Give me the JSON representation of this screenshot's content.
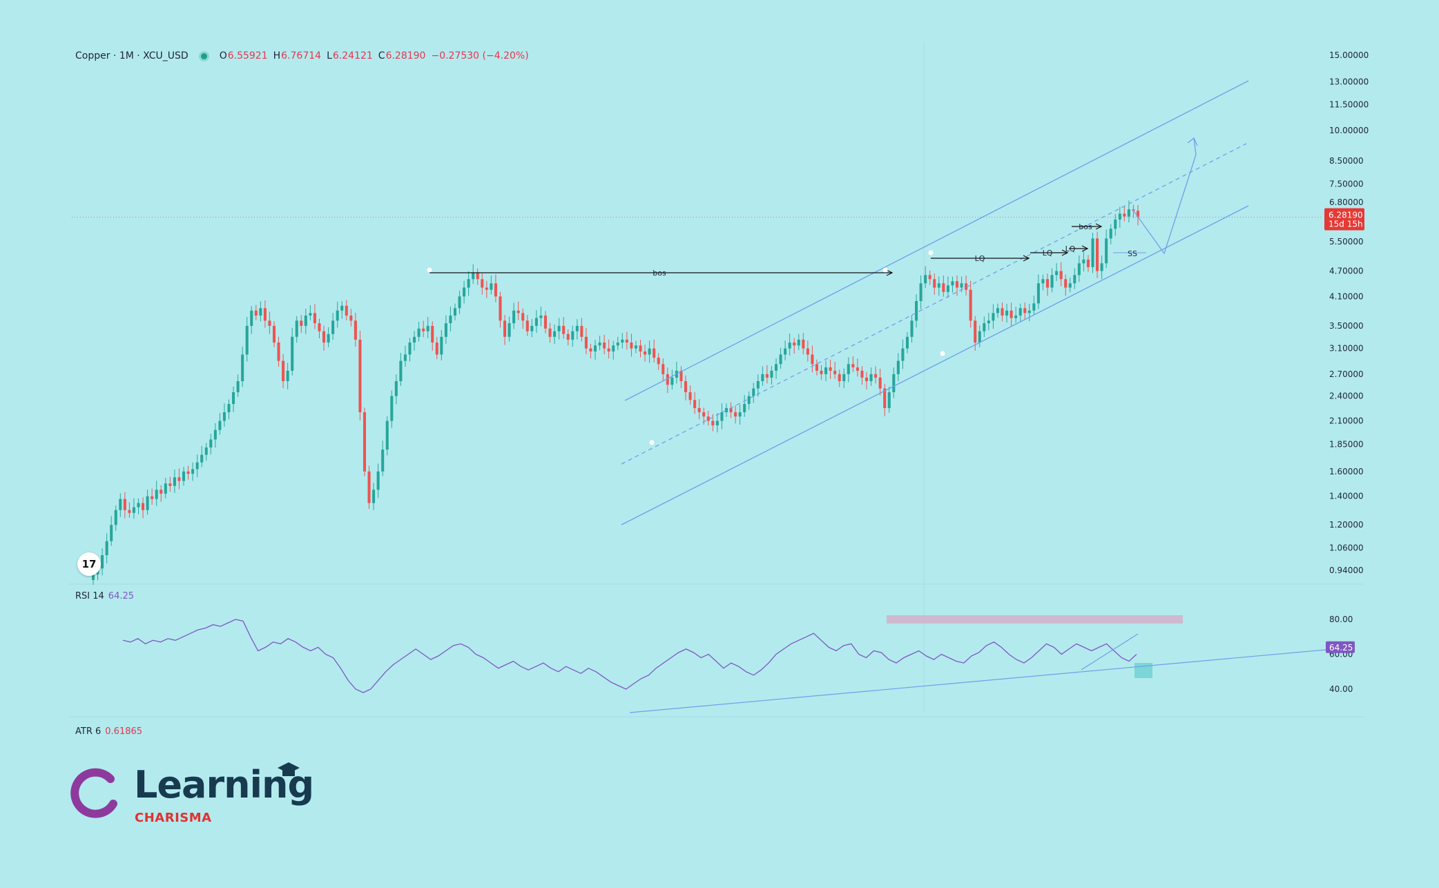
{
  "header": {
    "symbol": "Copper · 1M · XCU_USD",
    "open_label": "O",
    "open": "6.55921",
    "high_label": "H",
    "high": "6.76714",
    "low_label": "L",
    "low": "6.24121",
    "close_label": "C",
    "close": "6.28190",
    "change": "−0.27530 (−4.20%)"
  },
  "price_tag": {
    "price": "6.28190",
    "countdown": "15d 15h"
  },
  "rsi": {
    "label": "RSI 14",
    "value": "64.25"
  },
  "atr": {
    "label": "ATR 6",
    "value": "0.61865"
  },
  "brand": {
    "word": "Learning",
    "sub": "CHARISMA"
  },
  "tv_logo_glyph": "17",
  "colors": {
    "background": "#b3eaee",
    "up_candle": "#26a69a",
    "down_candle": "#ef5350",
    "channel": "#6f9fe8",
    "rsi_line": "#7e57c2",
    "price_tag": "#e53935",
    "brand_ring": "#8e3a9d",
    "brand_text": "#173a4f",
    "brand_sub": "#e03131"
  },
  "chart_data": [
    {
      "type": "candlestick",
      "title": "Copper · 1M · XCU_USD",
      "price_scale": "log",
      "ylim": [
        0.9,
        15.0
      ],
      "y_ticks": [
        "15.00000",
        "13.00000",
        "11.50000",
        "10.00000",
        "8.50000",
        "7.50000",
        "6.80000",
        "5.50000",
        "4.70000",
        "4.10000",
        "3.50000",
        "3.10000",
        "2.70000",
        "2.40000",
        "2.10000",
        "1.85000",
        "1.60000",
        "1.40000",
        "1.20000",
        "1.06000",
        "0.94000"
      ],
      "y_tick_values": [
        15.0,
        13.0,
        11.5,
        10.0,
        8.5,
        7.5,
        6.8,
        5.5,
        4.7,
        4.1,
        3.5,
        3.1,
        2.7,
        2.4,
        2.1,
        1.85,
        1.6,
        1.4,
        1.2,
        1.06,
        0.94
      ],
      "close_series": [
        0.92,
        0.95,
        1.02,
        1.1,
        1.2,
        1.3,
        1.38,
        1.3,
        1.28,
        1.32,
        1.35,
        1.3,
        1.4,
        1.38,
        1.45,
        1.42,
        1.5,
        1.48,
        1.55,
        1.52,
        1.6,
        1.58,
        1.62,
        1.68,
        1.75,
        1.82,
        1.9,
        2.0,
        2.1,
        2.2,
        2.3,
        2.45,
        2.6,
        3.0,
        3.5,
        3.8,
        3.7,
        3.85,
        3.6,
        3.5,
        3.2,
        2.9,
        2.6,
        2.75,
        3.3,
        3.6,
        3.5,
        3.7,
        3.75,
        3.55,
        3.4,
        3.2,
        3.35,
        3.6,
        3.8,
        3.9,
        3.7,
        3.6,
        3.25,
        2.2,
        1.6,
        1.35,
        1.45,
        1.6,
        1.8,
        2.1,
        2.4,
        2.6,
        2.9,
        3.0,
        3.2,
        3.3,
        3.45,
        3.4,
        3.5,
        3.2,
        3.0,
        3.3,
        3.55,
        3.7,
        3.85,
        4.1,
        4.3,
        4.5,
        4.65,
        4.5,
        4.3,
        4.25,
        4.4,
        4.1,
        3.6,
        3.3,
        3.55,
        3.8,
        3.75,
        3.6,
        3.4,
        3.5,
        3.65,
        3.7,
        3.45,
        3.3,
        3.4,
        3.5,
        3.35,
        3.25,
        3.4,
        3.5,
        3.3,
        3.1,
        3.05,
        3.15,
        3.2,
        3.1,
        3.05,
        3.15,
        3.2,
        3.25,
        3.2,
        3.1,
        3.15,
        3.05,
        3.0,
        3.1,
        2.95,
        2.85,
        2.7,
        2.55,
        2.65,
        2.75,
        2.6,
        2.45,
        2.35,
        2.25,
        2.2,
        2.15,
        2.1,
        2.05,
        2.1,
        2.2,
        2.25,
        2.2,
        2.15,
        2.2,
        2.3,
        2.4,
        2.5,
        2.6,
        2.7,
        2.65,
        2.75,
        2.85,
        3.0,
        3.1,
        3.2,
        3.15,
        3.25,
        3.1,
        3.0,
        2.85,
        2.75,
        2.7,
        2.8,
        2.75,
        2.7,
        2.6,
        2.7,
        2.85,
        2.8,
        2.75,
        2.65,
        2.6,
        2.7,
        2.65,
        2.5,
        2.25,
        2.45,
        2.7,
        2.9,
        3.1,
        3.3,
        3.6,
        4.0,
        4.4,
        4.6,
        4.5,
        4.3,
        4.4,
        4.2,
        4.35,
        4.45,
        4.3,
        4.4,
        4.25,
        3.6,
        3.2,
        3.4,
        3.55,
        3.6,
        3.75,
        3.85,
        3.7,
        3.8,
        3.65,
        3.7,
        3.85,
        3.75,
        3.8,
        3.95,
        4.4,
        4.5,
        4.3,
        4.6,
        4.7,
        4.5,
        4.3,
        4.4,
        4.6,
        4.9,
        5.0,
        4.8,
        5.6,
        4.7,
        4.9,
        5.6,
        5.9,
        6.2,
        6.4,
        6.3,
        6.55,
        6.5,
        6.28
      ],
      "annotations": [
        "bos",
        "LQ",
        "LQ",
        "LQ",
        "bos",
        "SS"
      ]
    },
    {
      "type": "line",
      "title": "RSI 14",
      "value": 64.25,
      "ylim": [
        30,
        90
      ],
      "y_ticks": [
        "80.00",
        "60.00",
        "40.00"
      ],
      "y_tick_values": [
        80,
        60,
        40
      ],
      "values": [
        68,
        67,
        69,
        66,
        68,
        67,
        69,
        68,
        70,
        72,
        74,
        75,
        77,
        76,
        78,
        80,
        79,
        70,
        62,
        64,
        67,
        66,
        69,
        67,
        64,
        62,
        64,
        60,
        58,
        52,
        45,
        40,
        38,
        40,
        45,
        50,
        54,
        57,
        60,
        63,
        60,
        57,
        59,
        62,
        65,
        66,
        64,
        60,
        58,
        55,
        52,
        54,
        56,
        53,
        51,
        53,
        55,
        52,
        50,
        53,
        51,
        49,
        52,
        50,
        47,
        44,
        42,
        40,
        43,
        46,
        48,
        52,
        55,
        58,
        61,
        63,
        61,
        58,
        60,
        56,
        52,
        55,
        53,
        50,
        48,
        51,
        55,
        60,
        63,
        66,
        68,
        70,
        72,
        68,
        64,
        62,
        65,
        66,
        60,
        58,
        62,
        61,
        57,
        55,
        58,
        60,
        62,
        59,
        57,
        60,
        58,
        56,
        55,
        59,
        61,
        65,
        67,
        64,
        60,
        57,
        55,
        58,
        62,
        66,
        64,
        60,
        63,
        66,
        64,
        62,
        64,
        66,
        62,
        58,
        56,
        60
      ],
      "annotations": [
        "80.00",
        "60.00",
        "40.00"
      ]
    },
    {
      "type": "line",
      "title": "ATR 6",
      "value": 0.61865
    }
  ]
}
